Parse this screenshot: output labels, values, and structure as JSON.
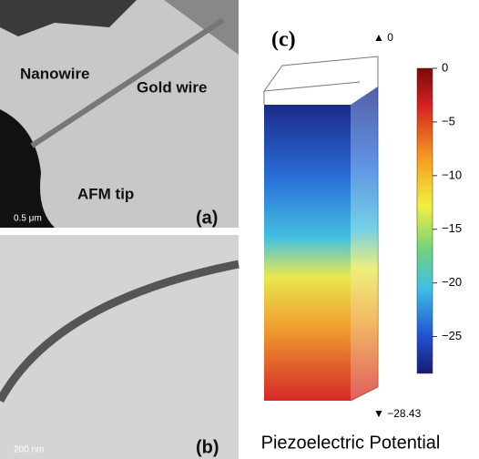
{
  "panels": {
    "a": {
      "label": "(a)",
      "annotations": [
        "Nanowire",
        "Gold wire",
        "AFM tip"
      ],
      "scale_bar": "0.5 μm"
    },
    "b": {
      "label": "(b)",
      "scale_bar": "200 nm"
    },
    "c": {
      "label": "(c)",
      "max_label": "▲ 0",
      "min_label": "▼ −28.43",
      "title": "Piezoelectric Potential",
      "colorbar": {
        "lim": [
          -28.43,
          0
        ],
        "ticks": [
          0,
          {
            "value": -5,
            "label": "−5"
          },
          {
            "value": -10,
            "label": "−10"
          },
          {
            "value": -15,
            "label": "−15"
          },
          {
            "value": -20,
            "label": "−20"
          },
          {
            "value": -25,
            "label": "−25"
          }
        ]
      }
    }
  }
}
